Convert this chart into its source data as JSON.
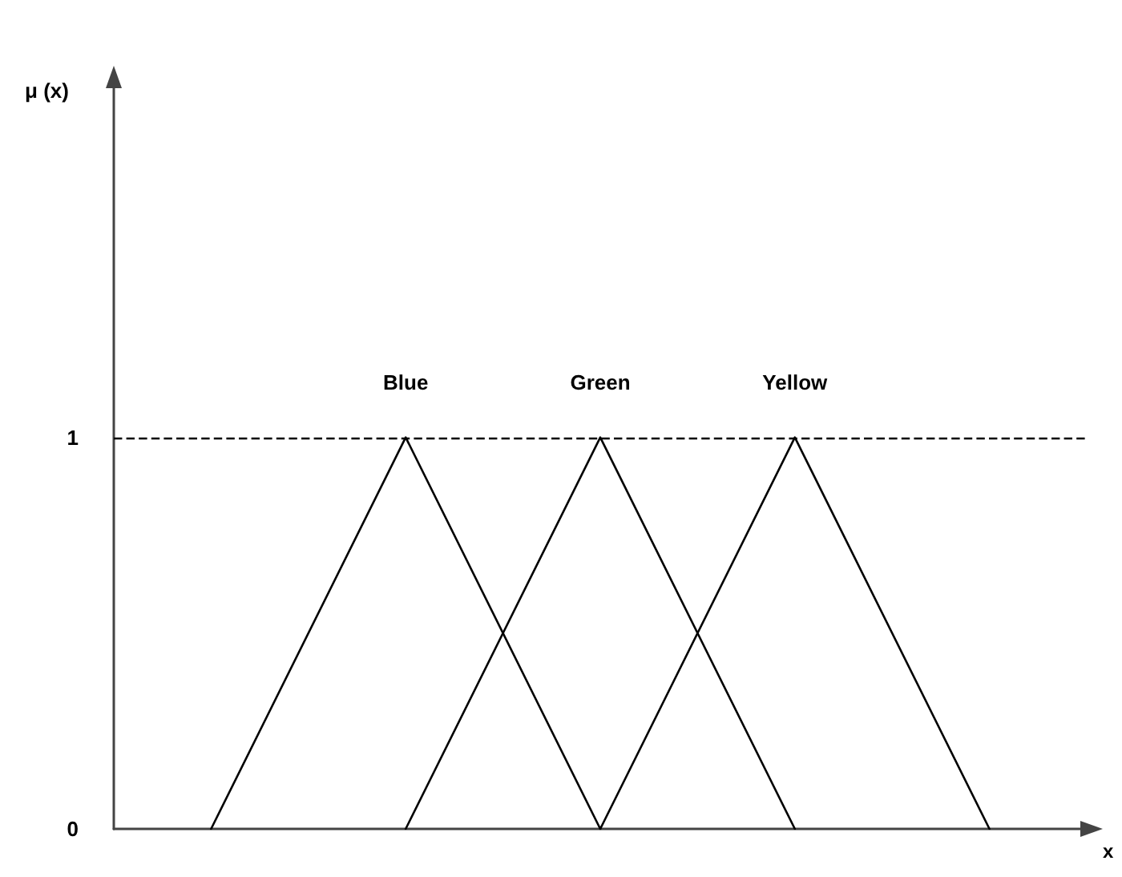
{
  "chart_data": {
    "type": "line",
    "xlabel": "x",
    "ylabel": "μ (x)",
    "categories": [
      null,
      null,
      null,
      null,
      null
    ],
    "series": [
      {
        "name": "Blue",
        "color": "#000000",
        "values": [
          0,
          1,
          0,
          null,
          null
        ]
      },
      {
        "name": "Green",
        "color": "#000000",
        "values": [
          null,
          0,
          1,
          0,
          null
        ]
      },
      {
        "name": "Yellow",
        "color": "#000000",
        "values": [
          null,
          null,
          0,
          1,
          0
        ]
      }
    ],
    "ylim": [
      0,
      1.9
    ],
    "yticks": [
      0,
      1
    ],
    "tick_labels": "y",
    "marker": "none",
    "line_style": "solid",
    "grid": false,
    "ref_lines": [
      {
        "axis": "y",
        "value": 1,
        "line_style": "dashed",
        "color": "#000000"
      }
    ]
  }
}
